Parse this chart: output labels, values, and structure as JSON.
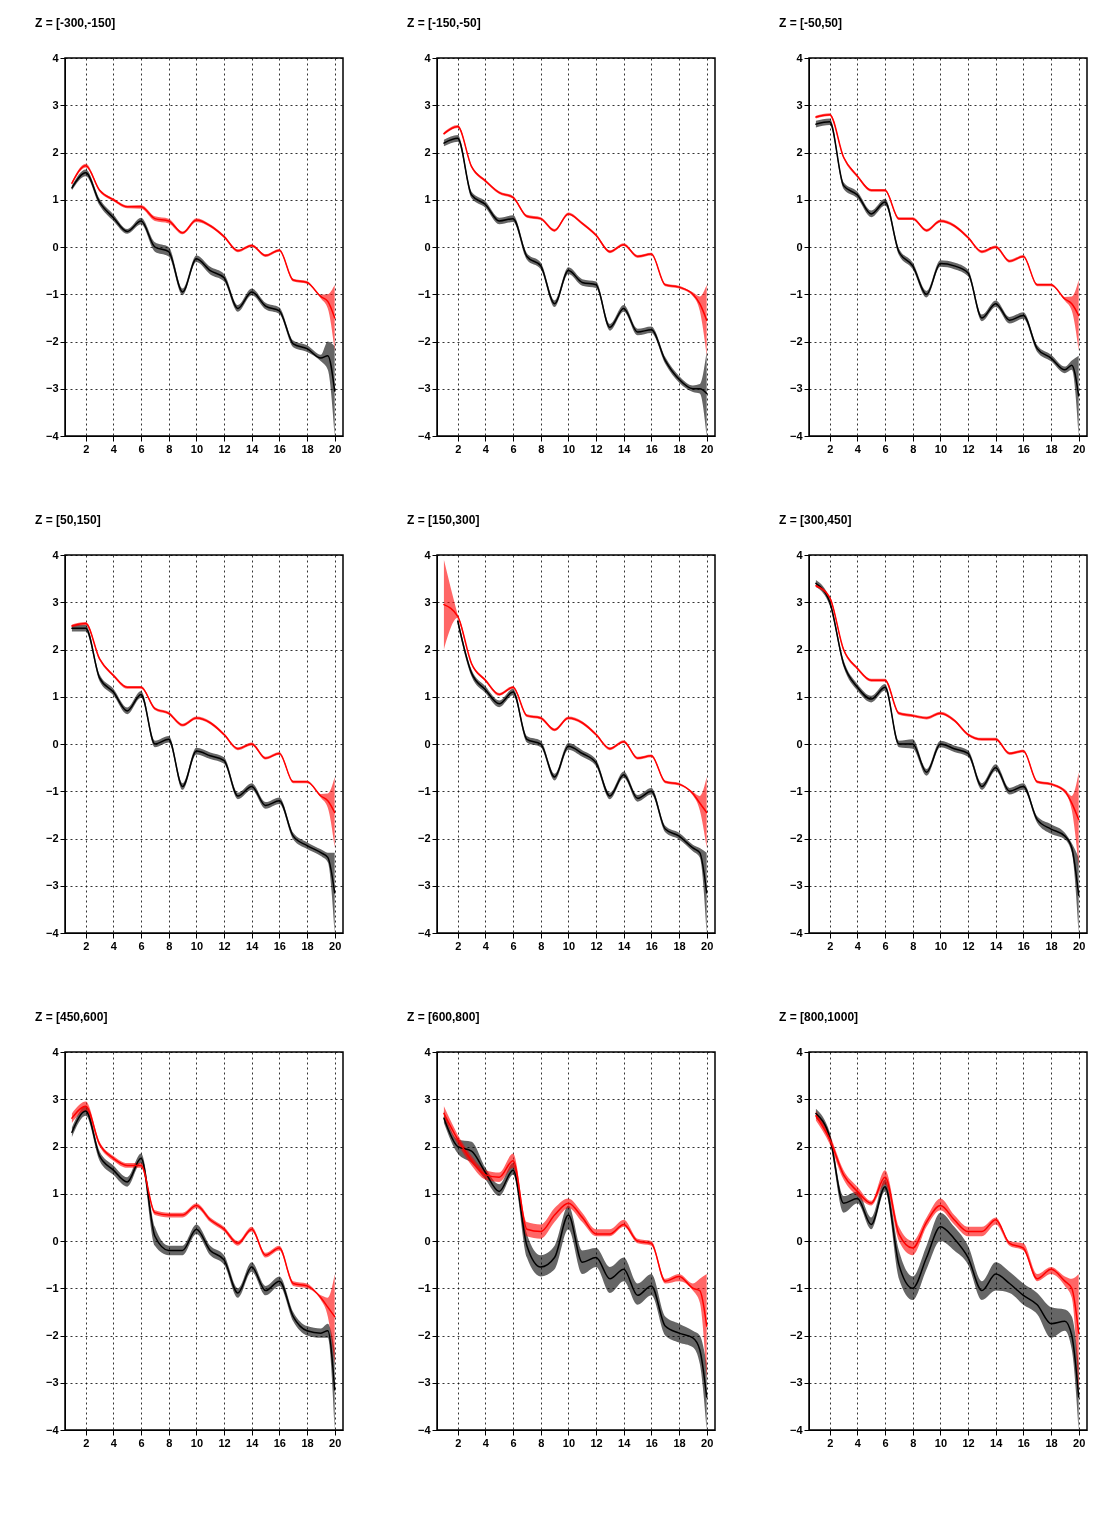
{
  "chart_data": [
    {
      "type": "line",
      "title": "Z = [-300,-150]",
      "x": [
        1,
        2,
        3,
        4,
        5,
        6,
        7,
        8,
        9,
        10,
        11,
        12,
        13,
        14,
        15,
        16,
        17,
        18,
        19,
        19.5,
        20
      ],
      "xlim": [
        0.5,
        20.6
      ],
      "xticks": [
        2,
        4,
        6,
        8,
        10,
        12,
        14,
        16,
        18,
        20
      ],
      "ylim": [
        -4,
        4
      ],
      "yticks": [
        -4,
        -3,
        -2,
        -1,
        0,
        1,
        2,
        3,
        4
      ],
      "grid": true,
      "series": [
        {
          "color": "#000000",
          "values": [
            1.25,
            1.57,
            0.95,
            0.62,
            0.33,
            0.55,
            0.0,
            -0.1,
            -0.95,
            -0.25,
            -0.5,
            -0.65,
            -1.3,
            -0.95,
            -1.25,
            -1.35,
            -2.05,
            -2.15,
            -2.35,
            -2.3,
            -3.05
          ],
          "lower": [
            1.2,
            1.5,
            0.88,
            0.55,
            0.28,
            0.48,
            -0.1,
            -0.2,
            -1.02,
            -0.32,
            -0.58,
            -0.73,
            -1.37,
            -1.02,
            -1.32,
            -1.42,
            -2.12,
            -2.22,
            -2.42,
            -2.6,
            -4
          ],
          "upper": [
            1.3,
            1.64,
            1.02,
            0.69,
            0.38,
            0.62,
            0.1,
            0.0,
            -0.88,
            -0.18,
            -0.42,
            -0.57,
            -1.23,
            -0.88,
            -1.18,
            -1.28,
            -1.98,
            -2.08,
            -2.28,
            -2.0,
            -2.1
          ]
        },
        {
          "color": "#ff0000",
          "values": [
            1.35,
            1.72,
            1.2,
            1.0,
            0.85,
            0.85,
            0.6,
            0.55,
            0.3,
            0.57,
            0.45,
            0.22,
            -0.08,
            0.03,
            -0.18,
            -0.07,
            -0.7,
            -0.75,
            -1.05,
            -1.15,
            -1.5
          ],
          "lower": [
            1.32,
            1.68,
            1.17,
            0.97,
            0.82,
            0.81,
            0.55,
            0.5,
            0.27,
            0.53,
            0.42,
            0.19,
            -0.11,
            0.0,
            -0.21,
            -0.1,
            -0.73,
            -0.78,
            -1.09,
            -1.3,
            -2.2
          ],
          "upper": [
            1.38,
            1.76,
            1.23,
            1.03,
            0.88,
            0.89,
            0.65,
            0.6,
            0.33,
            0.61,
            0.48,
            0.25,
            -0.05,
            0.06,
            -0.15,
            -0.04,
            -0.67,
            -0.72,
            -1.01,
            -1.0,
            -0.8
          ]
        }
      ]
    },
    {
      "type": "line",
      "title": "Z = [-150,-50]",
      "x": [
        1,
        2,
        3,
        4,
        5,
        6,
        7,
        8,
        9,
        10,
        11,
        12,
        13,
        14,
        15,
        16,
        17,
        18,
        19,
        19.5,
        20
      ],
      "xlim": [
        0.5,
        20.6
      ],
      "xticks": [
        2,
        4,
        6,
        8,
        10,
        12,
        14,
        16,
        18,
        20
      ],
      "ylim": [
        -4,
        4
      ],
      "yticks": [
        -4,
        -3,
        -2,
        -1,
        0,
        1,
        2,
        3,
        4
      ],
      "grid": true,
      "series": [
        {
          "color": "#000000",
          "values": [
            2.2,
            2.3,
            1.1,
            0.9,
            0.55,
            0.6,
            -0.2,
            -0.4,
            -1.2,
            -0.5,
            -0.75,
            -0.8,
            -1.7,
            -1.3,
            -1.8,
            -1.75,
            -2.4,
            -2.8,
            -3.0,
            -3.0,
            -3.1
          ],
          "lower": [
            2.13,
            2.23,
            1.03,
            0.83,
            0.48,
            0.53,
            -0.27,
            -0.47,
            -1.27,
            -0.57,
            -0.82,
            -0.87,
            -1.77,
            -1.37,
            -1.87,
            -1.82,
            -2.47,
            -2.87,
            -3.07,
            -3.1,
            -4
          ],
          "upper": [
            2.27,
            2.37,
            1.17,
            0.97,
            0.62,
            0.67,
            -0.13,
            -0.33,
            -1.13,
            -0.43,
            -0.68,
            -0.73,
            -1.63,
            -1.23,
            -1.73,
            -1.68,
            -2.33,
            -2.73,
            -2.93,
            -2.9,
            -2.2
          ]
        },
        {
          "color": "#ff0000",
          "values": [
            2.4,
            2.55,
            1.7,
            1.4,
            1.15,
            1.05,
            0.65,
            0.6,
            0.35,
            0.7,
            0.5,
            0.25,
            -0.1,
            0.05,
            -0.2,
            -0.15,
            -0.8,
            -0.85,
            -1.0,
            -1.2,
            -1.55
          ],
          "lower": [
            2.37,
            2.52,
            1.67,
            1.37,
            1.12,
            1.02,
            0.62,
            0.57,
            0.32,
            0.67,
            0.47,
            0.22,
            -0.13,
            0.02,
            -0.23,
            -0.18,
            -0.83,
            -0.88,
            -1.04,
            -1.35,
            -2.3
          ],
          "upper": [
            2.43,
            2.58,
            1.73,
            1.43,
            1.18,
            1.08,
            0.68,
            0.63,
            0.38,
            0.73,
            0.53,
            0.28,
            -0.07,
            0.08,
            -0.17,
            -0.12,
            -0.77,
            -0.82,
            -0.96,
            -1.05,
            -0.8
          ]
        }
      ]
    },
    {
      "type": "line",
      "title": "Z = [-50,50]",
      "x": [
        1,
        2,
        3,
        4,
        5,
        6,
        7,
        8,
        9,
        10,
        11,
        12,
        13,
        14,
        15,
        16,
        17,
        18,
        19,
        19.5,
        20
      ],
      "xlim": [
        0.5,
        20.6
      ],
      "xticks": [
        2,
        4,
        6,
        8,
        10,
        12,
        14,
        16,
        18,
        20
      ],
      "ylim": [
        -4,
        4
      ],
      "yticks": [
        -4,
        -3,
        -2,
        -1,
        0,
        1,
        2,
        3,
        4
      ],
      "grid": true,
      "series": [
        {
          "color": "#000000",
          "values": [
            2.6,
            2.65,
            1.3,
            1.1,
            0.7,
            0.95,
            -0.1,
            -0.4,
            -1.0,
            -0.35,
            -0.4,
            -0.55,
            -1.5,
            -1.2,
            -1.55,
            -1.45,
            -2.15,
            -2.35,
            -2.6,
            -2.5,
            -3.15
          ],
          "lower": [
            2.53,
            2.58,
            1.23,
            1.03,
            0.63,
            0.88,
            -0.17,
            -0.47,
            -1.07,
            -0.42,
            -0.47,
            -0.62,
            -1.57,
            -1.27,
            -1.62,
            -1.52,
            -2.22,
            -2.42,
            -2.67,
            -2.6,
            -4
          ],
          "upper": [
            2.67,
            2.72,
            1.37,
            1.17,
            0.77,
            1.02,
            -0.03,
            -0.33,
            -0.93,
            -0.28,
            -0.33,
            -0.48,
            -1.43,
            -1.13,
            -1.48,
            -1.38,
            -2.08,
            -2.28,
            -2.53,
            -2.4,
            -2.3
          ]
        },
        {
          "color": "#ff0000",
          "values": [
            2.75,
            2.8,
            1.9,
            1.5,
            1.2,
            1.2,
            0.6,
            0.6,
            0.35,
            0.55,
            0.45,
            0.2,
            -0.1,
            0.0,
            -0.3,
            -0.2,
            -0.8,
            -0.8,
            -1.1,
            -1.2,
            -1.45
          ],
          "lower": [
            2.72,
            2.77,
            1.87,
            1.47,
            1.17,
            1.17,
            0.57,
            0.57,
            0.32,
            0.52,
            0.42,
            0.17,
            -0.13,
            -0.03,
            -0.33,
            -0.23,
            -0.83,
            -0.83,
            -1.14,
            -1.35,
            -2.2
          ],
          "upper": [
            2.78,
            2.83,
            1.93,
            1.53,
            1.23,
            1.23,
            0.63,
            0.63,
            0.38,
            0.58,
            0.48,
            0.23,
            -0.07,
            0.03,
            -0.27,
            -0.17,
            -0.77,
            -0.77,
            -1.06,
            -1.05,
            -0.7
          ]
        }
      ]
    },
    {
      "type": "line",
      "title": "Z = [50,150]",
      "x": [
        1,
        2,
        3,
        4,
        5,
        6,
        7,
        8,
        9,
        10,
        11,
        12,
        13,
        14,
        15,
        16,
        17,
        18,
        19,
        19.5,
        20
      ],
      "xlim": [
        0.5,
        20.6
      ],
      "xticks": [
        2,
        4,
        6,
        8,
        10,
        12,
        14,
        16,
        18,
        20
      ],
      "ylim": [
        -4,
        4
      ],
      "yticks": [
        -4,
        -3,
        -2,
        -1,
        0,
        1,
        2,
        3,
        4
      ],
      "grid": true,
      "series": [
        {
          "color": "#000000",
          "values": [
            2.45,
            2.45,
            1.4,
            1.1,
            0.7,
            1.05,
            0.0,
            0.1,
            -0.9,
            -0.15,
            -0.25,
            -0.35,
            -1.1,
            -0.9,
            -1.3,
            -1.2,
            -1.95,
            -2.15,
            -2.3,
            -2.4,
            -3.15
          ],
          "lower": [
            2.38,
            2.38,
            1.33,
            1.03,
            0.63,
            0.98,
            -0.07,
            0.03,
            -0.97,
            -0.22,
            -0.32,
            -0.42,
            -1.17,
            -0.97,
            -1.37,
            -1.27,
            -2.02,
            -2.22,
            -2.37,
            -2.5,
            -4
          ],
          "upper": [
            2.52,
            2.52,
            1.47,
            1.17,
            0.77,
            1.12,
            0.07,
            0.17,
            -0.83,
            -0.08,
            -0.18,
            -0.28,
            -1.03,
            -0.83,
            -1.23,
            -1.13,
            -1.88,
            -2.08,
            -2.23,
            -2.3,
            -2.3
          ]
        },
        {
          "color": "#ff0000",
          "values": [
            2.5,
            2.55,
            1.8,
            1.45,
            1.2,
            1.2,
            0.75,
            0.65,
            0.4,
            0.55,
            0.45,
            0.2,
            -0.1,
            0.0,
            -0.3,
            -0.2,
            -0.8,
            -0.8,
            -1.1,
            -1.2,
            -1.45
          ],
          "lower": [
            2.47,
            2.52,
            1.77,
            1.42,
            1.17,
            1.17,
            0.72,
            0.62,
            0.37,
            0.52,
            0.42,
            0.17,
            -0.13,
            -0.03,
            -0.33,
            -0.23,
            -0.83,
            -0.83,
            -1.14,
            -1.35,
            -2.2
          ],
          "upper": [
            2.53,
            2.58,
            1.83,
            1.48,
            1.23,
            1.23,
            0.78,
            0.68,
            0.43,
            0.58,
            0.48,
            0.23,
            -0.07,
            0.03,
            -0.27,
            -0.17,
            -0.77,
            -0.77,
            -1.06,
            -1.05,
            -0.7
          ]
        }
      ]
    },
    {
      "type": "line",
      "title": "Z = [150,300]",
      "x": [
        1,
        2,
        3,
        4,
        5,
        6,
        7,
        8,
        9,
        10,
        11,
        12,
        13,
        14,
        15,
        16,
        17,
        18,
        19,
        19.5,
        20
      ],
      "xlim": [
        0.5,
        20.6
      ],
      "xticks": [
        2,
        4,
        6,
        8,
        10,
        12,
        14,
        16,
        18,
        20
      ],
      "ylim": [
        -4,
        4
      ],
      "yticks": [
        -4,
        -3,
        -2,
        -1,
        0,
        1,
        2,
        3,
        4
      ],
      "grid": true,
      "series": [
        {
          "color": "#000000",
          "values": [
            null,
            2.6,
            1.5,
            1.15,
            0.85,
            1.1,
            0.1,
            0.0,
            -0.7,
            -0.05,
            -0.2,
            -0.4,
            -1.1,
            -0.65,
            -1.15,
            -1.0,
            -1.8,
            -1.95,
            -2.2,
            -2.3,
            -3.15
          ],
          "lower": [
            null,
            2.53,
            1.43,
            1.08,
            0.78,
            1.03,
            0.03,
            -0.07,
            -0.77,
            -0.12,
            -0.27,
            -0.47,
            -1.17,
            -0.72,
            -1.22,
            -1.07,
            -1.87,
            -2.02,
            -2.27,
            -2.4,
            -4
          ],
          "upper": [
            null,
            2.67,
            1.57,
            1.22,
            0.92,
            1.17,
            0.17,
            0.07,
            -0.63,
            0.02,
            -0.13,
            -0.33,
            -1.03,
            -0.58,
            -1.08,
            -0.93,
            -1.73,
            -1.88,
            -2.13,
            -2.2,
            -2.3
          ]
        },
        {
          "color": "#ff0000",
          "values": [
            2.95,
            2.7,
            1.7,
            1.35,
            1.05,
            1.2,
            0.6,
            0.55,
            0.3,
            0.55,
            0.45,
            0.2,
            -0.1,
            0.05,
            -0.3,
            -0.25,
            -0.8,
            -0.85,
            -1.05,
            -1.25,
            -1.45
          ],
          "lower": [
            2.0,
            2.67,
            1.67,
            1.32,
            1.02,
            1.17,
            0.57,
            0.52,
            0.27,
            0.52,
            0.42,
            0.17,
            -0.13,
            0.02,
            -0.33,
            -0.28,
            -0.83,
            -0.88,
            -1.09,
            -1.4,
            -2.2
          ],
          "upper": [
            3.9,
            2.73,
            1.73,
            1.38,
            1.08,
            1.23,
            0.63,
            0.58,
            0.33,
            0.58,
            0.48,
            0.23,
            -0.07,
            0.08,
            -0.27,
            -0.22,
            -0.77,
            -0.82,
            -1.01,
            -1.1,
            -0.7
          ]
        }
      ]
    },
    {
      "type": "line",
      "title": "Z = [300,450]",
      "x": [
        1,
        2,
        3,
        4,
        5,
        6,
        7,
        8,
        9,
        10,
        11,
        12,
        13,
        14,
        15,
        16,
        17,
        18,
        19,
        19.5,
        20
      ],
      "xlim": [
        0.5,
        20.6
      ],
      "xticks": [
        2,
        4,
        6,
        8,
        10,
        12,
        14,
        16,
        18,
        20
      ],
      "ylim": [
        -4,
        4
      ],
      "yticks": [
        -4,
        -3,
        -2,
        -1,
        0,
        1,
        2,
        3,
        4
      ],
      "grid": true,
      "series": [
        {
          "color": "#000000",
          "values": [
            3.4,
            3.0,
            1.7,
            1.2,
            0.95,
            1.2,
            0.0,
            0.0,
            -0.6,
            0.0,
            -0.1,
            -0.2,
            -0.9,
            -0.5,
            -1.0,
            -0.9,
            -1.6,
            -1.8,
            -1.95,
            -2.2,
            -3.2
          ],
          "lower": [
            3.33,
            2.93,
            1.63,
            1.13,
            0.88,
            1.13,
            -0.07,
            -0.1,
            -0.67,
            -0.07,
            -0.17,
            -0.27,
            -0.97,
            -0.57,
            -1.07,
            -0.97,
            -1.67,
            -1.9,
            -2.02,
            -2.3,
            -4
          ],
          "upper": [
            3.47,
            3.07,
            1.77,
            1.27,
            1.02,
            1.27,
            0.07,
            0.1,
            -0.53,
            0.07,
            -0.03,
            -0.13,
            -0.83,
            -0.43,
            -0.93,
            -0.83,
            -1.53,
            -1.7,
            -1.88,
            -2.1,
            -2.4
          ]
        },
        {
          "color": "#ff0000",
          "values": [
            3.35,
            3.1,
            2.0,
            1.6,
            1.35,
            1.35,
            0.65,
            0.6,
            0.55,
            0.65,
            0.5,
            0.2,
            0.1,
            0.1,
            -0.2,
            -0.15,
            -0.8,
            -0.85,
            -1.0,
            -1.25,
            -1.6
          ],
          "lower": [
            3.32,
            3.07,
            1.97,
            1.57,
            1.32,
            1.32,
            0.62,
            0.57,
            0.52,
            0.62,
            0.47,
            0.17,
            0.07,
            0.07,
            -0.23,
            -0.18,
            -0.83,
            -0.88,
            -1.04,
            -1.4,
            -2.6
          ],
          "upper": [
            3.38,
            3.13,
            2.03,
            1.63,
            1.38,
            1.38,
            0.68,
            0.63,
            0.58,
            0.68,
            0.53,
            0.23,
            0.13,
            0.13,
            -0.17,
            -0.12,
            -0.77,
            -0.82,
            -0.96,
            -1.1,
            -0.6
          ]
        }
      ]
    },
    {
      "type": "line",
      "title": "Z = [450,600]",
      "x": [
        1,
        2,
        3,
        4,
        5,
        6,
        7,
        8,
        9,
        10,
        11,
        12,
        13,
        14,
        15,
        16,
        17,
        18,
        19,
        19.5,
        20
      ],
      "xlim": [
        0.5,
        20.6
      ],
      "xticks": [
        2,
        4,
        6,
        8,
        10,
        12,
        14,
        16,
        18,
        20
      ],
      "ylim": [
        -4,
        4
      ],
      "yticks": [
        -4,
        -3,
        -2,
        -1,
        0,
        1,
        2,
        3,
        4
      ],
      "grid": true,
      "series": [
        {
          "color": "#000000",
          "values": [
            2.3,
            2.75,
            1.8,
            1.5,
            1.25,
            1.75,
            0.1,
            -0.2,
            -0.2,
            0.25,
            -0.2,
            -0.4,
            -1.1,
            -0.55,
            -1.05,
            -0.85,
            -1.6,
            -1.9,
            -1.95,
            -1.9,
            -3.15
          ],
          "lower": [
            2.2,
            2.65,
            1.7,
            1.4,
            1.15,
            1.65,
            -0.1,
            -0.3,
            -0.3,
            0.15,
            -0.3,
            -0.5,
            -1.2,
            -0.65,
            -1.15,
            -0.95,
            -1.7,
            -2.0,
            -2.05,
            -2.05,
            -4
          ],
          "upper": [
            2.4,
            2.85,
            1.9,
            1.6,
            1.35,
            1.85,
            0.3,
            -0.1,
            -0.1,
            0.35,
            -0.1,
            -0.3,
            -1.0,
            -0.45,
            -0.95,
            -0.75,
            -1.5,
            -1.8,
            -1.85,
            -1.75,
            -2.3
          ]
        },
        {
          "color": "#ff0000",
          "values": [
            2.6,
            2.85,
            2.05,
            1.75,
            1.6,
            1.6,
            0.6,
            0.55,
            0.55,
            0.75,
            0.45,
            0.25,
            -0.05,
            0.25,
            -0.3,
            -0.15,
            -0.9,
            -0.95,
            -1.2,
            -1.4,
            -1.6
          ],
          "lower": [
            2.5,
            2.75,
            2.0,
            1.7,
            1.55,
            1.55,
            0.55,
            0.5,
            0.5,
            0.7,
            0.4,
            0.2,
            -0.1,
            0.2,
            -0.35,
            -0.2,
            -0.95,
            -1.0,
            -1.25,
            -1.6,
            -2.6
          ],
          "upper": [
            2.7,
            2.95,
            2.1,
            1.8,
            1.65,
            1.65,
            0.65,
            0.6,
            0.6,
            0.8,
            0.5,
            0.3,
            0.0,
            0.3,
            -0.25,
            -0.1,
            -0.85,
            -0.9,
            -1.15,
            -1.2,
            -0.7
          ]
        }
      ]
    },
    {
      "type": "line",
      "title": "Z = [600,800]",
      "x": [
        1,
        2,
        3,
        4,
        5,
        6,
        7,
        8,
        9,
        10,
        11,
        12,
        13,
        14,
        15,
        16,
        17,
        18,
        19,
        19.5,
        20
      ],
      "xlim": [
        0.5,
        20.6
      ],
      "xticks": [
        2,
        4,
        6,
        8,
        10,
        12,
        14,
        16,
        18,
        20
      ],
      "ylim": [
        -4,
        4
      ],
      "yticks": [
        -4,
        -3,
        -2,
        -1,
        0,
        1,
        2,
        3,
        4
      ],
      "grid": true,
      "series": [
        {
          "color": "#000000",
          "values": [
            2.6,
            2.0,
            1.9,
            1.45,
            1.05,
            1.5,
            -0.1,
            -0.55,
            -0.35,
            0.55,
            -0.45,
            -0.35,
            -0.8,
            -0.6,
            -1.15,
            -0.95,
            -1.8,
            -1.95,
            -2.05,
            -2.3,
            -3.3
          ],
          "lower": [
            2.5,
            1.85,
            1.65,
            1.3,
            0.95,
            1.4,
            -0.35,
            -0.75,
            -0.6,
            0.25,
            -0.7,
            -0.55,
            -1.1,
            -0.85,
            -1.35,
            -1.15,
            -2.0,
            -2.15,
            -2.25,
            -2.6,
            -4
          ],
          "upper": [
            2.75,
            2.15,
            2.1,
            1.55,
            1.2,
            1.65,
            0.15,
            -0.3,
            -0.1,
            0.75,
            -0.2,
            -0.15,
            -0.55,
            -0.35,
            -0.9,
            -0.7,
            -1.6,
            -1.75,
            -1.9,
            -2.0,
            -2.6
          ]
        },
        {
          "color": "#ff0000",
          "values": [
            2.7,
            2.15,
            1.7,
            1.4,
            1.35,
            1.7,
            0.25,
            0.2,
            0.55,
            0.8,
            0.5,
            0.15,
            0.15,
            0.35,
            0.0,
            -0.05,
            -0.85,
            -0.75,
            -1.0,
            -1.05,
            -1.8
          ],
          "lower": [
            2.6,
            2.05,
            1.6,
            1.3,
            1.25,
            1.55,
            0.1,
            0.05,
            0.4,
            0.7,
            0.4,
            0.1,
            0.1,
            0.3,
            -0.05,
            -0.1,
            -0.9,
            -0.85,
            -1.05,
            -1.3,
            -2.9
          ],
          "upper": [
            2.85,
            2.25,
            1.8,
            1.5,
            1.45,
            1.85,
            0.4,
            0.35,
            0.7,
            0.9,
            0.6,
            0.25,
            0.25,
            0.45,
            0.05,
            0.0,
            -0.8,
            -0.7,
            -0.9,
            -0.8,
            -0.7
          ]
        }
      ]
    },
    {
      "type": "line",
      "title": "Z = [800,1000]",
      "x": [
        1,
        2,
        3,
        4,
        5,
        6,
        7,
        8,
        9,
        10,
        11,
        12,
        13,
        14,
        15,
        16,
        17,
        18,
        19,
        19.5,
        20
      ],
      "xlim": [
        0.5,
        20.6
      ],
      "xticks": [
        2,
        4,
        6,
        8,
        10,
        12,
        14,
        16,
        18,
        20
      ],
      "ylim": [
        -4,
        4
      ],
      "yticks": [
        -4,
        -3,
        -2,
        -1,
        0,
        1,
        2,
        3,
        4
      ],
      "grid": true,
      "series": [
        {
          "color": "#000000",
          "values": [
            2.7,
            2.2,
            0.8,
            0.9,
            0.35,
            1.15,
            -0.5,
            -1.0,
            -0.35,
            0.3,
            0.05,
            -0.35,
            -1.05,
            -0.7,
            -0.9,
            -1.15,
            -1.35,
            -1.75,
            -1.7,
            -2.0,
            -3.3
          ],
          "lower": [
            2.6,
            2.1,
            0.6,
            0.8,
            0.25,
            1.05,
            -0.8,
            -1.25,
            -0.6,
            0.0,
            -0.2,
            -0.5,
            -1.25,
            -1.05,
            -1.1,
            -1.35,
            -1.55,
            -2.05,
            -1.9,
            -2.3,
            -4
          ],
          "upper": [
            2.8,
            2.3,
            0.95,
            1.05,
            0.5,
            1.3,
            -0.2,
            -0.75,
            -0.1,
            0.6,
            0.3,
            -0.1,
            -0.85,
            -0.45,
            -0.65,
            -0.9,
            -1.1,
            -1.4,
            -1.45,
            -1.6,
            -2.6
          ]
        },
        {
          "color": "#ff0000",
          "values": [
            2.65,
            2.15,
            1.4,
            1.05,
            0.8,
            1.35,
            0.15,
            -0.15,
            0.4,
            0.75,
            0.45,
            0.2,
            0.2,
            0.45,
            -0.05,
            -0.15,
            -0.8,
            -0.6,
            -0.85,
            -1.0,
            -1.95
          ],
          "lower": [
            2.55,
            2.05,
            1.3,
            0.95,
            0.75,
            1.2,
            0.0,
            -0.3,
            0.3,
            0.65,
            0.35,
            0.1,
            0.1,
            0.35,
            -0.1,
            -0.2,
            -0.85,
            -0.7,
            -0.95,
            -1.2,
            -3.2
          ],
          "upper": [
            2.75,
            2.25,
            1.5,
            1.15,
            0.85,
            1.5,
            0.3,
            0.0,
            0.5,
            0.9,
            0.55,
            0.3,
            0.3,
            0.5,
            0.0,
            -0.05,
            -0.7,
            -0.55,
            -0.75,
            -0.8,
            -0.7
          ]
        }
      ]
    }
  ]
}
